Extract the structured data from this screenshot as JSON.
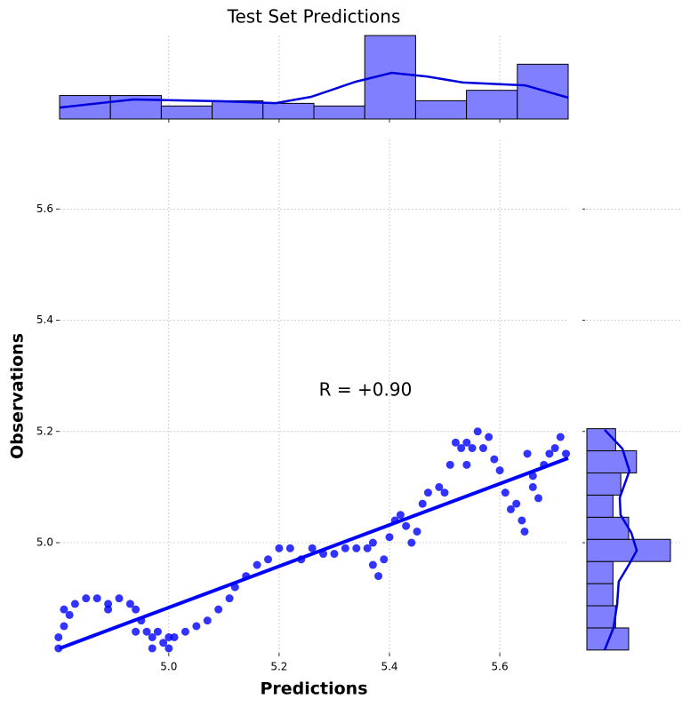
{
  "chart_data": {
    "type": "scatter",
    "title": "Test Set Predictions",
    "xlabel": "Predictions",
    "ylabel": "Observations",
    "annotation": "R = +0.90",
    "color": "#0000ff",
    "x": [
      4.8,
      4.8,
      4.81,
      4.81,
      4.82,
      4.83,
      4.85,
      4.87,
      4.89,
      4.91,
      4.93,
      4.94,
      4.95,
      4.96,
      4.97,
      4.98,
      4.99,
      5.0,
      5.01,
      5.03,
      5.05,
      5.07,
      5.09,
      5.11,
      5.12,
      5.14,
      5.16,
      5.18,
      5.2,
      5.22,
      5.24,
      5.26,
      5.28,
      5.3,
      5.32,
      5.34,
      5.36,
      5.37,
      5.38,
      5.39,
      5.4,
      5.41,
      5.42,
      5.43,
      5.44,
      5.45,
      5.46,
      5.47,
      5.49,
      5.5,
      5.51,
      5.52,
      5.53,
      5.54,
      5.55,
      5.56,
      5.57,
      5.58,
      5.59,
      5.6,
      5.61,
      5.62,
      5.63,
      5.64,
      5.645,
      5.65,
      5.66,
      5.67,
      5.68,
      5.69,
      5.7,
      5.71,
      5.72,
      4.94,
      4.97,
      5.0,
      4.89,
      5.54,
      5.66,
      5.37
    ],
    "y": [
      4.81,
      4.83,
      4.85,
      4.88,
      4.87,
      4.89,
      4.9,
      4.9,
      4.89,
      4.9,
      4.89,
      4.88,
      4.86,
      4.84,
      4.83,
      4.84,
      4.82,
      4.81,
      4.83,
      4.84,
      4.85,
      4.86,
      4.88,
      4.9,
      4.92,
      4.94,
      4.96,
      4.97,
      4.99,
      4.99,
      4.97,
      4.99,
      4.98,
      4.98,
      4.99,
      4.99,
      4.99,
      4.96,
      4.94,
      4.97,
      5.01,
      5.04,
      5.05,
      5.03,
      5.0,
      5.02,
      5.07,
      5.09,
      5.1,
      5.09,
      5.14,
      5.18,
      5.17,
      5.14,
      5.17,
      5.2,
      5.17,
      5.19,
      5.15,
      5.13,
      5.09,
      5.06,
      5.07,
      5.04,
      5.02,
      5.16,
      5.12,
      5.08,
      5.14,
      5.16,
      5.17,
      5.19,
      5.16,
      4.84,
      4.81,
      4.83,
      4.88,
      5.18,
      5.1,
      5.0
    ],
    "xlim": [
      4.802,
      5.724
    ],
    "ylim": [
      4.802,
      5.725
    ],
    "xticks": [
      {
        "value": 5,
        "label": "5.0"
      },
      5.2,
      5.4,
      5.6
    ],
    "yticks": [
      {
        "value": 5,
        "label": "5.0"
      },
      5.2,
      5.4,
      5.6
    ],
    "grid": true,
    "regression": {
      "x": [
        4.802,
        5.724
      ],
      "y": [
        4.81,
        5.152
      ]
    },
    "top_hist": {
      "bins": [
        4.802,
        4.8942,
        4.9864,
        5.0786,
        5.1708,
        5.263,
        5.3552,
        5.4474,
        5.5396,
        5.6318,
        5.724
      ],
      "counts": [
        9,
        9,
        5,
        7,
        6,
        5,
        32,
        7,
        11,
        21
      ],
      "kde": {
        "x": [
          4.802,
          4.936,
          5.097,
          5.194,
          5.258,
          5.339,
          5.404,
          5.468,
          5.533,
          5.646,
          5.724
        ],
        "values": [
          4.4,
          7.5,
          6.8,
          6.1,
          8.5,
          14.3,
          17.7,
          16.3,
          14,
          12.9,
          8.2
        ]
      }
    },
    "right_hist": {
      "bins": [
        4.807,
        4.8468,
        4.8866,
        4.9264,
        4.9662,
        5.006,
        5.0458,
        5.0856,
        5.1254,
        5.1652,
        5.205
      ],
      "counts": [
        16,
        11,
        10,
        10,
        32,
        16,
        10,
        13,
        19,
        11
      ],
      "kde": {
        "x": [
          4.807,
          4.847,
          4.89,
          4.93,
          4.962,
          4.986,
          5.018,
          5.05,
          5.081,
          5.129,
          5.169,
          5.203
        ],
        "values": [
          6.8,
          10.2,
          11.6,
          12.2,
          16.3,
          19.1,
          17,
          12.9,
          12.6,
          16.3,
          13.6,
          6.8
        ]
      }
    },
    "hist_color": "#8080ff",
    "kde_color": "#0000dd"
  }
}
